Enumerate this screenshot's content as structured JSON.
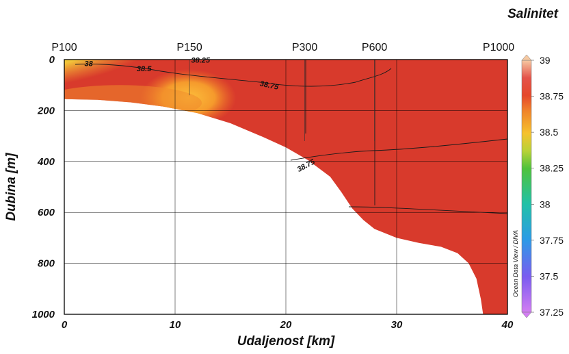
{
  "chart_data": {
    "type": "heatmap",
    "title": "Salinitet",
    "xlabel": "Udaljenost [km]",
    "ylabel": "Dubina [m]",
    "xlim": [
      0,
      40
    ],
    "ylim": [
      1000,
      0
    ],
    "x_ticks": [
      "0",
      "10",
      "20",
      "30",
      "40"
    ],
    "y_ticks": [
      "0",
      "200",
      "400",
      "600",
      "800",
      "1000"
    ],
    "grid": true,
    "stations": [
      {
        "label": "P100",
        "x": 0
      },
      {
        "label": "P150",
        "x": 11.3
      },
      {
        "label": "P300",
        "x": 21.7
      },
      {
        "label": "P600",
        "x": 28.0
      },
      {
        "label": "P1000",
        "x": 39.2
      }
    ],
    "colorbar": {
      "ticks": [
        "39",
        "38.75",
        "38.5",
        "38.25",
        "38",
        "37.75",
        "37.5",
        "37.25"
      ],
      "range": [
        37.25,
        39
      ]
    },
    "contour_labels": [
      {
        "text": "38",
        "x": 2.2,
        "y": 15
      },
      {
        "text": "38.5",
        "x": 7.2,
        "y": 35
      },
      {
        "text": "38.25",
        "x": 12.3,
        "y": 2
      },
      {
        "text": "38.75",
        "x": 18.5,
        "y": 100
      },
      {
        "text": "38.75",
        "x": 21.8,
        "y": 415
      }
    ],
    "bottom_profile": [
      [
        0,
        155
      ],
      [
        3,
        158
      ],
      [
        6,
        168
      ],
      [
        9,
        185
      ],
      [
        12,
        210
      ],
      [
        15,
        250
      ],
      [
        18,
        305
      ],
      [
        20,
        345
      ],
      [
        22,
        395
      ],
      [
        24,
        460
      ],
      [
        25,
        520
      ],
      [
        26,
        585
      ],
      [
        27,
        630
      ],
      [
        28,
        665
      ],
      [
        30,
        700
      ],
      [
        32,
        720
      ],
      [
        34,
        735
      ],
      [
        35.5,
        760
      ],
      [
        36.5,
        800
      ],
      [
        37.2,
        860
      ],
      [
        37.6,
        940
      ],
      [
        37.8,
        1000
      ]
    ],
    "watermark": "Ocean Data View / DIVA"
  }
}
